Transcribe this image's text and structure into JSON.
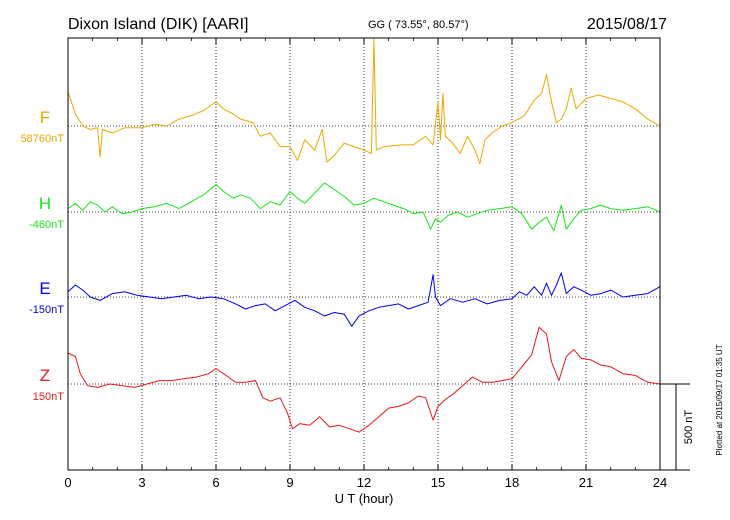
{
  "header": {
    "station": "Dixon Island (DIK)  [AARI]",
    "coords": "GG ( 73.55°,  80.57°)",
    "date": "2015/08/17"
  },
  "side_note": "Plotted at 2015/09/17 01:35 UT",
  "scale_bar": {
    "label": "500 nT",
    "value_nT": 500
  },
  "chart_data": {
    "type": "line",
    "xlabel": "U T (hour)",
    "xlim": [
      0,
      24
    ],
    "xticks": [
      "0",
      "3",
      "6",
      "9",
      "12",
      "15",
      "18",
      "21",
      "24"
    ],
    "grid": true,
    "series": [
      {
        "name": "F",
        "baseline_label": "58760nT",
        "color": "#f0a800",
        "baseline_nT": 58760,
        "points": [
          [
            0,
            58960
          ],
          [
            0.3,
            58830
          ],
          [
            0.6,
            58760
          ],
          [
            0.9,
            58740
          ],
          [
            1.2,
            58750
          ],
          [
            1.3,
            58580
          ],
          [
            1.4,
            58740
          ],
          [
            1.8,
            58720
          ],
          [
            2.3,
            58750
          ],
          [
            3,
            58750
          ],
          [
            3.5,
            58770
          ],
          [
            4,
            58760
          ],
          [
            4.5,
            58800
          ],
          [
            5,
            58820
          ],
          [
            5.5,
            58850
          ],
          [
            6,
            58900
          ],
          [
            6.3,
            58860
          ],
          [
            6.7,
            58830
          ],
          [
            7,
            58800
          ],
          [
            7.5,
            58780
          ],
          [
            7.8,
            58700
          ],
          [
            8.2,
            58720
          ],
          [
            8.6,
            58640
          ],
          [
            9,
            58640
          ],
          [
            9.3,
            58560
          ],
          [
            9.6,
            58680
          ],
          [
            10,
            58620
          ],
          [
            10.3,
            58740
          ],
          [
            10.5,
            58550
          ],
          [
            10.8,
            58590
          ],
          [
            11.2,
            58660
          ],
          [
            11.6,
            58640
          ],
          [
            12,
            58620
          ],
          [
            12.3,
            58600
          ],
          [
            12.4,
            59420
          ],
          [
            12.5,
            58620
          ],
          [
            12.8,
            58640
          ],
          [
            13.5,
            58650
          ],
          [
            14,
            58650
          ],
          [
            14.5,
            58700
          ],
          [
            14.8,
            58650
          ],
          [
            15,
            58900
          ],
          [
            15.1,
            58680
          ],
          [
            15.2,
            58950
          ],
          [
            15.3,
            58700
          ],
          [
            15.6,
            58660
          ],
          [
            15.9,
            58600
          ],
          [
            16.2,
            58700
          ],
          [
            16.5,
            58620
          ],
          [
            16.7,
            58540
          ],
          [
            16.9,
            58680
          ],
          [
            17.2,
            58720
          ],
          [
            17.6,
            58760
          ],
          [
            18,
            58780
          ],
          [
            18.5,
            58820
          ],
          [
            18.9,
            58910
          ],
          [
            19.2,
            58950
          ],
          [
            19.4,
            59060
          ],
          [
            19.6,
            58900
          ],
          [
            19.8,
            58780
          ],
          [
            20,
            58800
          ],
          [
            20.2,
            58860
          ],
          [
            20.4,
            58980
          ],
          [
            20.6,
            58860
          ],
          [
            21,
            58920
          ],
          [
            21.5,
            58940
          ],
          [
            22,
            58920
          ],
          [
            22.5,
            58900
          ],
          [
            23,
            58860
          ],
          [
            23.5,
            58800
          ],
          [
            24,
            58760
          ]
        ]
      },
      {
        "name": "H",
        "baseline_label": "-460nT",
        "color": "#19e619",
        "baseline_nT": -460,
        "points": [
          [
            0,
            -440
          ],
          [
            0.3,
            -410
          ],
          [
            0.6,
            -450
          ],
          [
            0.9,
            -400
          ],
          [
            1.2,
            -420
          ],
          [
            1.5,
            -460
          ],
          [
            1.8,
            -430
          ],
          [
            2.2,
            -470
          ],
          [
            2.6,
            -460
          ],
          [
            3,
            -440
          ],
          [
            3.5,
            -430
          ],
          [
            4,
            -410
          ],
          [
            4.5,
            -440
          ],
          [
            5,
            -400
          ],
          [
            5.5,
            -360
          ],
          [
            6,
            -300
          ],
          [
            6.3,
            -340
          ],
          [
            6.7,
            -380
          ],
          [
            7,
            -360
          ],
          [
            7.4,
            -380
          ],
          [
            7.8,
            -440
          ],
          [
            8.2,
            -400
          ],
          [
            8.6,
            -420
          ],
          [
            9,
            -340
          ],
          [
            9.3,
            -380
          ],
          [
            9.6,
            -410
          ],
          [
            10,
            -350
          ],
          [
            10.4,
            -290
          ],
          [
            10.8,
            -330
          ],
          [
            11.2,
            -370
          ],
          [
            11.6,
            -420
          ],
          [
            12,
            -410
          ],
          [
            12.4,
            -380
          ],
          [
            12.8,
            -400
          ],
          [
            13.2,
            -420
          ],
          [
            13.6,
            -440
          ],
          [
            14,
            -470
          ],
          [
            14.4,
            -460
          ],
          [
            14.7,
            -560
          ],
          [
            14.9,
            -500
          ],
          [
            15.1,
            -520
          ],
          [
            15.4,
            -480
          ],
          [
            15.8,
            -460
          ],
          [
            16.2,
            -490
          ],
          [
            16.6,
            -470
          ],
          [
            17,
            -450
          ],
          [
            17.5,
            -440
          ],
          [
            18,
            -430
          ],
          [
            18.4,
            -470
          ],
          [
            18.8,
            -560
          ],
          [
            19.1,
            -520
          ],
          [
            19.4,
            -490
          ],
          [
            19.7,
            -570
          ],
          [
            19.9,
            -470
          ],
          [
            20,
            -420
          ],
          [
            20.2,
            -560
          ],
          [
            20.5,
            -500
          ],
          [
            20.8,
            -450
          ],
          [
            21.2,
            -440
          ],
          [
            21.6,
            -420
          ],
          [
            22,
            -440
          ],
          [
            22.5,
            -450
          ],
          [
            23,
            -440
          ],
          [
            23.5,
            -430
          ],
          [
            24,
            -460
          ]
        ]
      },
      {
        "name": "E",
        "baseline_label": "-150nT",
        "color": "#0000e6",
        "baseline_nT": -150,
        "points": [
          [
            0,
            -120
          ],
          [
            0.3,
            -80
          ],
          [
            0.6,
            -110
          ],
          [
            0.9,
            -150
          ],
          [
            1.3,
            -170
          ],
          [
            1.8,
            -130
          ],
          [
            2.3,
            -120
          ],
          [
            2.8,
            -140
          ],
          [
            3.3,
            -150
          ],
          [
            3.8,
            -160
          ],
          [
            4.3,
            -150
          ],
          [
            4.8,
            -140
          ],
          [
            5.3,
            -160
          ],
          [
            5.8,
            -150
          ],
          [
            6.3,
            -160
          ],
          [
            6.8,
            -190
          ],
          [
            7.2,
            -220
          ],
          [
            7.6,
            -200
          ],
          [
            8,
            -190
          ],
          [
            8.4,
            -230
          ],
          [
            8.8,
            -200
          ],
          [
            9.2,
            -170
          ],
          [
            9.6,
            -210
          ],
          [
            10,
            -230
          ],
          [
            10.4,
            -260
          ],
          [
            10.8,
            -240
          ],
          [
            11.2,
            -250
          ],
          [
            11.5,
            -320
          ],
          [
            11.8,
            -260
          ],
          [
            12.2,
            -230
          ],
          [
            12.6,
            -210
          ],
          [
            13,
            -200
          ],
          [
            13.4,
            -190
          ],
          [
            13.8,
            -220
          ],
          [
            14.2,
            -200
          ],
          [
            14.6,
            -180
          ],
          [
            14.8,
            -20
          ],
          [
            14.9,
            -150
          ],
          [
            15.1,
            -200
          ],
          [
            15.5,
            -160
          ],
          [
            16,
            -180
          ],
          [
            16.5,
            -160
          ],
          [
            17,
            -190
          ],
          [
            17.5,
            -170
          ],
          [
            18,
            -160
          ],
          [
            18.3,
            -120
          ],
          [
            18.6,
            -140
          ],
          [
            18.9,
            -90
          ],
          [
            19.2,
            -140
          ],
          [
            19.4,
            -70
          ],
          [
            19.6,
            -140
          ],
          [
            19.8,
            -80
          ],
          [
            20,
            -10
          ],
          [
            20.2,
            -130
          ],
          [
            20.5,
            -90
          ],
          [
            20.8,
            -110
          ],
          [
            21.2,
            -140
          ],
          [
            21.6,
            -130
          ],
          [
            22,
            -110
          ],
          [
            22.5,
            -150
          ],
          [
            23,
            -140
          ],
          [
            23.5,
            -130
          ],
          [
            24,
            -90
          ]
        ]
      },
      {
        "name": "Z",
        "baseline_label": "150nT",
        "color": "#e61919",
        "baseline_nT": 150,
        "points": [
          [
            0,
            330
          ],
          [
            0.3,
            310
          ],
          [
            0.5,
            210
          ],
          [
            0.8,
            140
          ],
          [
            1.2,
            130
          ],
          [
            1.7,
            150
          ],
          [
            2.2,
            140
          ],
          [
            2.7,
            130
          ],
          [
            3.2,
            150
          ],
          [
            3.7,
            170
          ],
          [
            4.2,
            170
          ],
          [
            4.7,
            180
          ],
          [
            5.2,
            190
          ],
          [
            5.7,
            210
          ],
          [
            6,
            240
          ],
          [
            6.4,
            200
          ],
          [
            6.8,
            160
          ],
          [
            7.2,
            160
          ],
          [
            7.6,
            170
          ],
          [
            7.9,
            70
          ],
          [
            8.2,
            50
          ],
          [
            8.6,
            70
          ],
          [
            8.9,
            -20
          ],
          [
            9.1,
            -110
          ],
          [
            9.4,
            -80
          ],
          [
            9.8,
            -90
          ],
          [
            10.2,
            -40
          ],
          [
            10.6,
            -100
          ],
          [
            11,
            -90
          ],
          [
            11.4,
            -110
          ],
          [
            11.8,
            -130
          ],
          [
            12.2,
            -90
          ],
          [
            12.6,
            -40
          ],
          [
            13,
            10
          ],
          [
            13.4,
            20
          ],
          [
            13.8,
            40
          ],
          [
            14.2,
            80
          ],
          [
            14.5,
            70
          ],
          [
            14.8,
            -60
          ],
          [
            15,
            20
          ],
          [
            15.3,
            60
          ],
          [
            15.6,
            90
          ],
          [
            16,
            140
          ],
          [
            16.4,
            190
          ],
          [
            16.8,
            160
          ],
          [
            17.2,
            160
          ],
          [
            17.6,
            170
          ],
          [
            18,
            180
          ],
          [
            18.4,
            250
          ],
          [
            18.8,
            320
          ],
          [
            19.1,
            480
          ],
          [
            19.4,
            440
          ],
          [
            19.6,
            280
          ],
          [
            19.9,
            170
          ],
          [
            20.2,
            310
          ],
          [
            20.5,
            350
          ],
          [
            20.8,
            300
          ],
          [
            21.2,
            290
          ],
          [
            21.6,
            260
          ],
          [
            22,
            250
          ],
          [
            22.5,
            210
          ],
          [
            23,
            200
          ],
          [
            23.5,
            160
          ],
          [
            24,
            150
          ]
        ]
      }
    ]
  }
}
